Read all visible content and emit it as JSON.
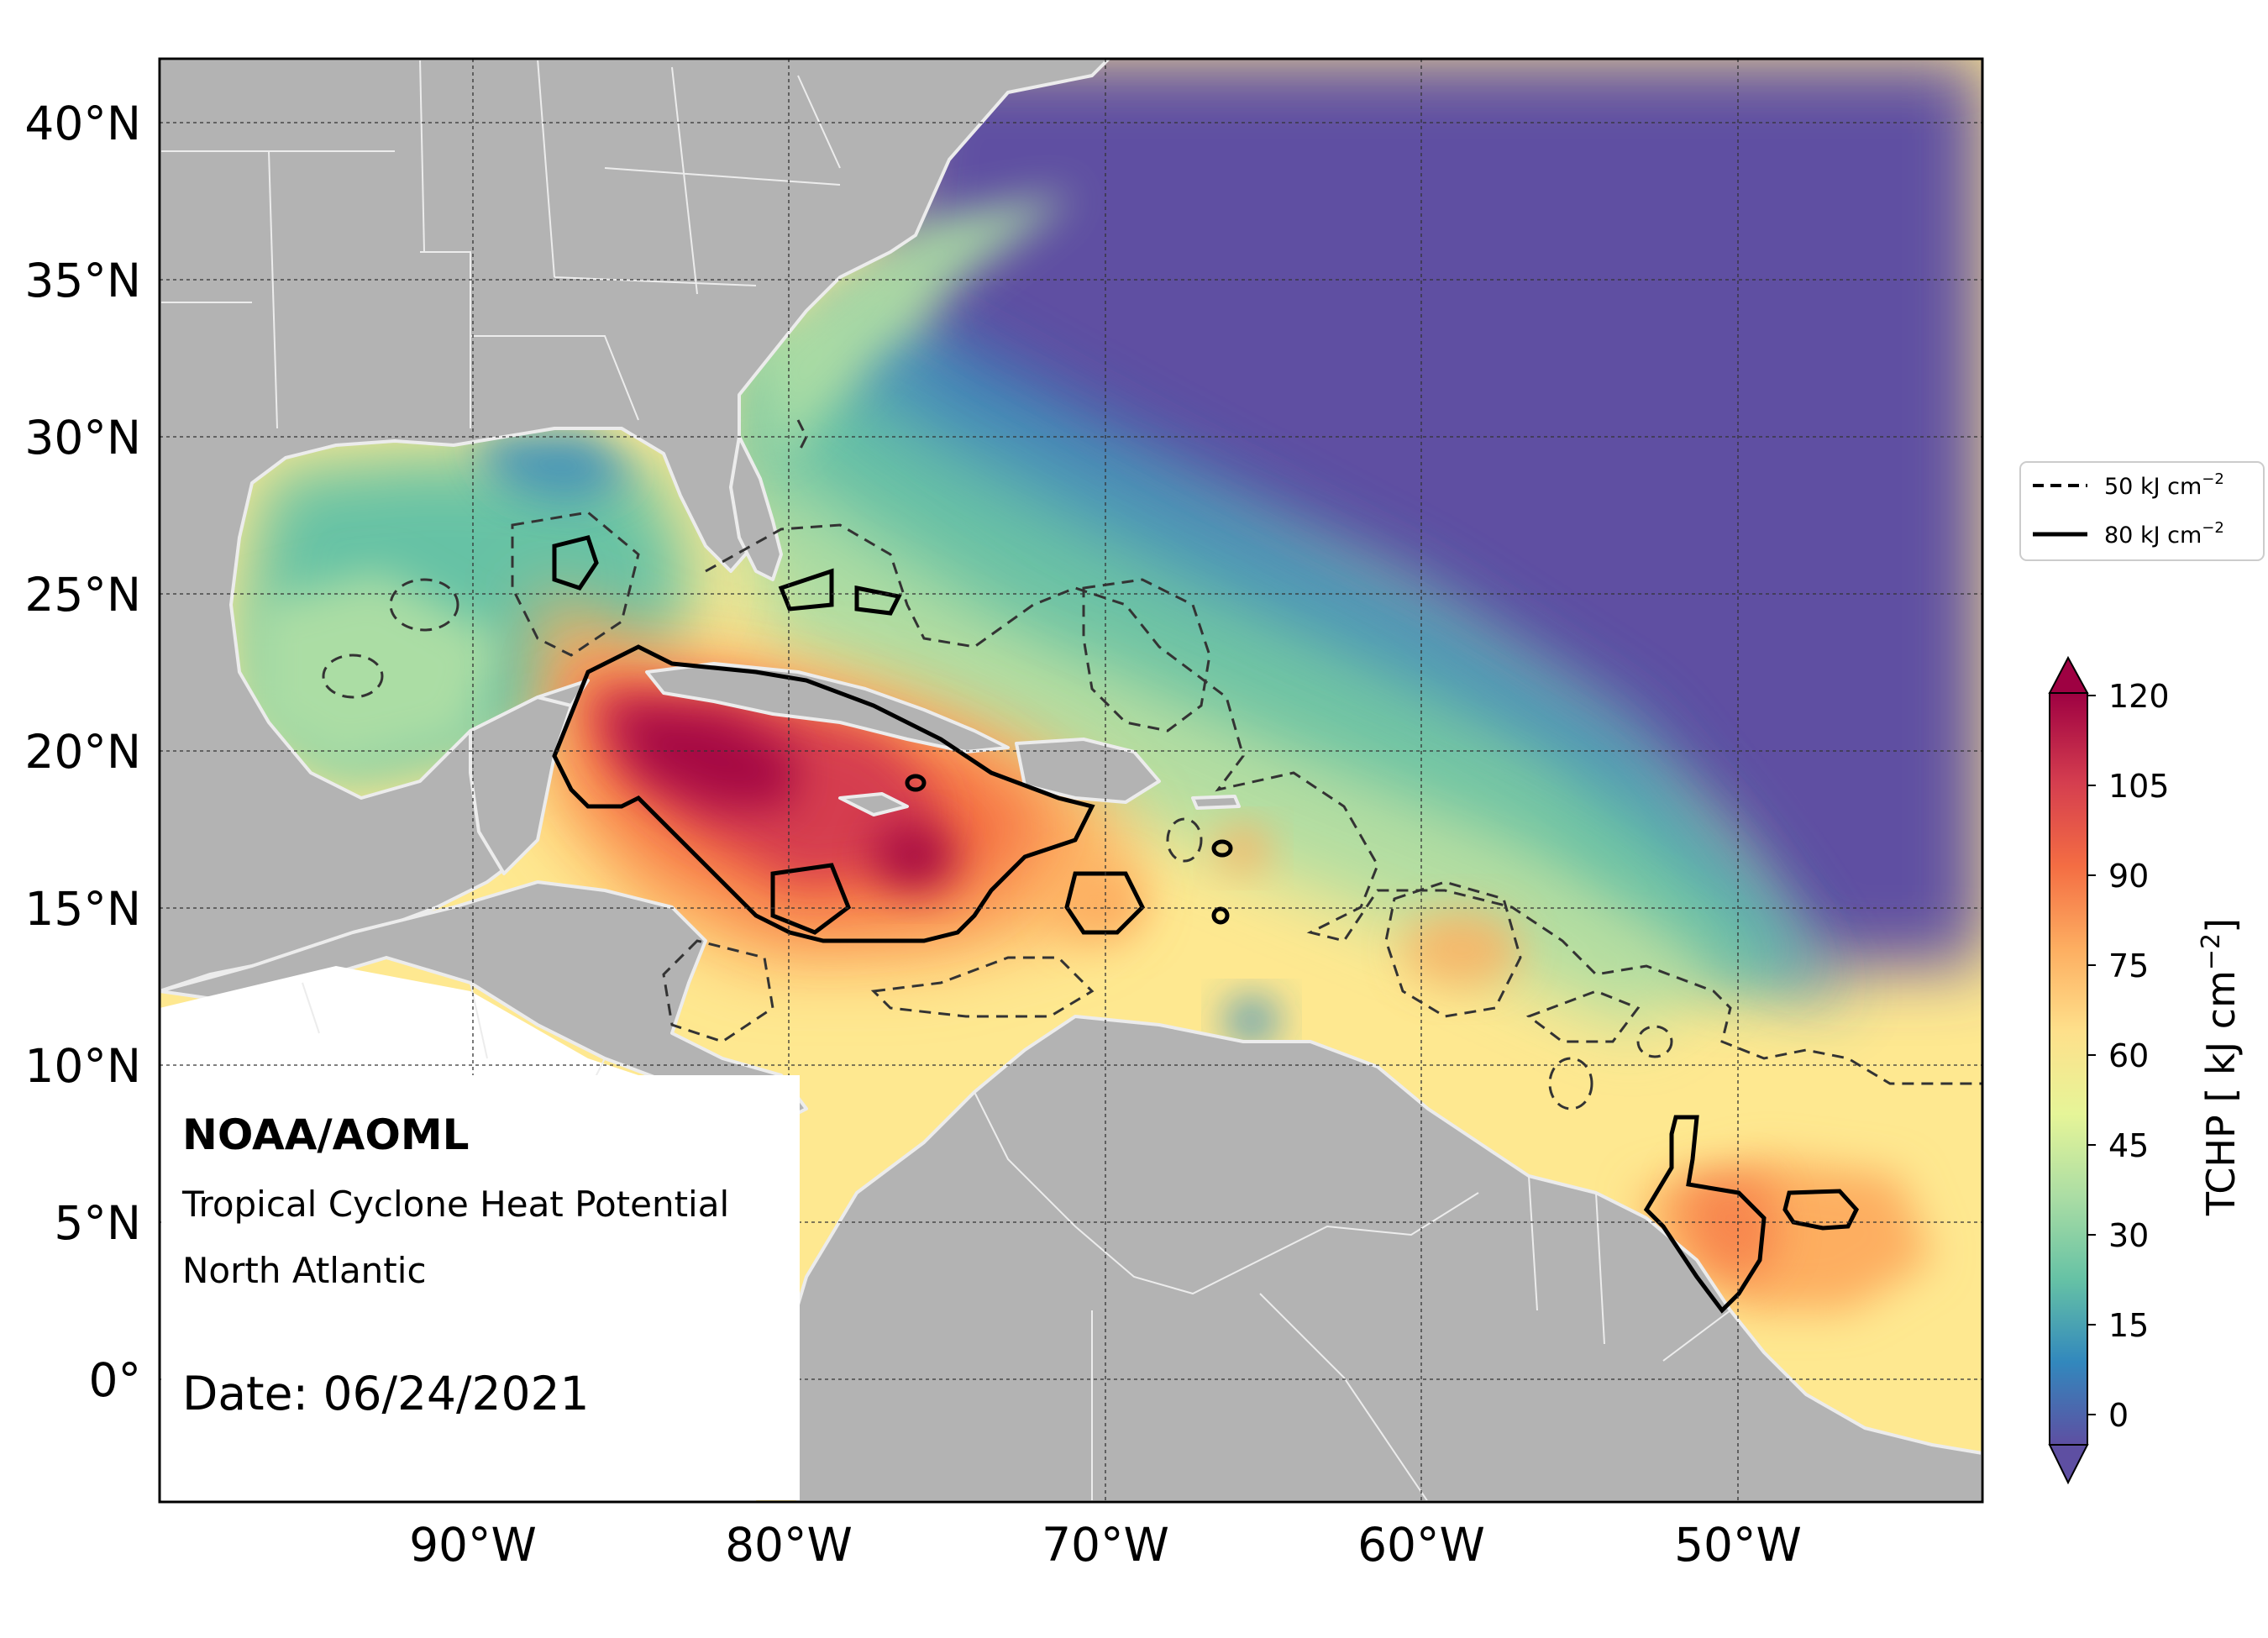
{
  "map": {
    "lat_labels": [
      "40°N",
      "35°N",
      "30°N",
      "25°N",
      "20°N",
      "15°N",
      "10°N",
      "5°N",
      "0°"
    ],
    "lon_labels": [
      "90°W",
      "80°W",
      "70°W",
      "60°W",
      "50°W"
    ],
    "colors": {
      "land": "#b3b3b3",
      "coast": "#ececec",
      "frame": "#000000",
      "grid": "#333333",
      "scale": [
        "#5e4fa2",
        "#3288bd",
        "#66c2a5",
        "#abdda4",
        "#e6f598",
        "#fee08b",
        "#fdae61",
        "#f46d43",
        "#d53e4f",
        "#9e0142"
      ]
    }
  },
  "annotation": {
    "org": "NOAA/AOML",
    "product": "Tropical Cyclone Heat Potential",
    "region": "North Atlantic",
    "date": "Date: 06/24/2021"
  },
  "legend": {
    "dashed_label": "50 kJ cm",
    "solid_label": "80 kJ cm",
    "exponent": "−2"
  },
  "colorbar": {
    "ticks": [
      "120",
      "105",
      "90",
      "75",
      "60",
      "45",
      "30",
      "15",
      "0"
    ],
    "label": "TCHP [ kJ cm",
    "label_exp": "−2",
    "label_end": "]"
  }
}
